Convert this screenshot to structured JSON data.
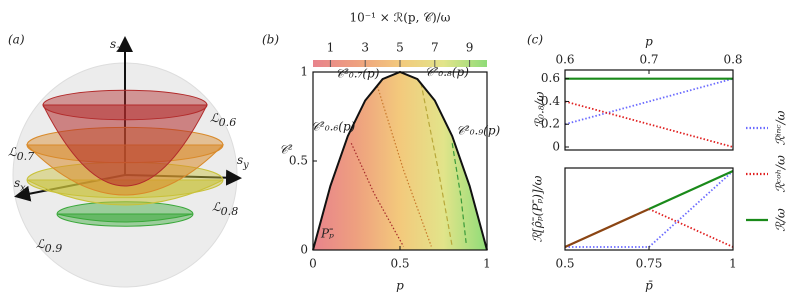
{
  "diagram": {
    "panel_label": "(a)",
    "axes": [
      {
        "symbol": "s",
        "sub": "z"
      },
      {
        "symbol": "s",
        "sub": "x"
      },
      {
        "symbol": "s",
        "sub": "y"
      }
    ],
    "surfaces": [
      {
        "symbol": "ℒ",
        "sub": "0.6",
        "color": "#b22b2b"
      },
      {
        "symbol": "ℒ",
        "sub": "0.7",
        "color": "#d98a2a"
      },
      {
        "symbol": "ℒ",
        "sub": "0.8",
        "color": "#c9c23a"
      },
      {
        "symbol": "ℒ",
        "sub": "0.9",
        "color": "#3aa83a"
      }
    ]
  },
  "chart_data": [
    {
      "type": "contour",
      "panel_label": "(b)",
      "x_label": "p",
      "y_label": "𝒞²",
      "xlim": [
        0,
        1
      ],
      "xticks": [
        0,
        0.5,
        1
      ],
      "ylim": [
        0,
        1
      ],
      "yticks": [
        0,
        0.5,
        1
      ],
      "colorbar": {
        "title": "10⁻¹ × ℛ(p, 𝒞)/ω",
        "lim": [
          0,
          10
        ],
        "ticks": [
          1,
          3,
          5,
          7,
          9
        ],
        "colors": [
          "#e8838c",
          "#eea07f",
          "#f3c97c",
          "#e2e48a",
          "#8fdc78"
        ]
      },
      "boundary": {
        "x": [
          0,
          0.1,
          0.2,
          0.3,
          0.4,
          0.5,
          0.6,
          0.7,
          0.8,
          0.9,
          1
        ],
        "values": [
          0,
          0.36,
          0.64,
          0.84,
          0.96,
          1,
          0.96,
          0.84,
          0.64,
          0.36,
          0
        ]
      },
      "contour_lines": [
        {
          "name": "𝒞²₀.₆(p)",
          "color": "#a52a2a",
          "x": [
            0.22,
            0.35,
            0.52
          ],
          "values": [
            0.6,
            0.32,
            0.02
          ]
        },
        {
          "name": "𝒞²₀.₇(p)",
          "color": "#c8782a",
          "x": [
            0.37,
            0.52,
            0.68
          ],
          "values": [
            0.92,
            0.45,
            0.02
          ]
        },
        {
          "name": "𝒞²₀.₈(p)",
          "color": "#b8a83a",
          "x": [
            0.62,
            0.72,
            0.8
          ],
          "values": [
            0.94,
            0.45,
            0.02
          ]
        },
        {
          "name": "𝒞²₀.₉(p)",
          "color": "#3a9a3a",
          "x": [
            0.8,
            0.85,
            0.88
          ],
          "values": [
            0.6,
            0.3,
            0.04
          ]
        }
      ],
      "annotation": "Pₚ̄"
    },
    {
      "type": "line",
      "panel_label": "(c)",
      "x_label": "p",
      "y_label": "ℛ₀.₈/ω",
      "x": [
        0.6,
        0.8
      ],
      "xlim": [
        0.6,
        0.8
      ],
      "xticks": [
        0.6,
        0.7,
        0.8
      ],
      "ylim": [
        0,
        0.65
      ],
      "yticks": [
        0,
        0.2,
        0.4,
        0.6
      ],
      "series": [
        {
          "name": "ℛⁱⁿᶜ/ω",
          "color": "#6b6bff",
          "dash": "dotted",
          "values": [
            0.2,
            0.6
          ]
        },
        {
          "name": "ℛᶜᵒʰ/ω",
          "color": "#e02020",
          "dash": "dotted",
          "values": [
            0.4,
            0
          ]
        },
        {
          "name": "ℛ/ω",
          "color": "#1a8a1a",
          "dash": "solid",
          "values": [
            0.6,
            0.6
          ]
        }
      ]
    },
    {
      "type": "line",
      "x_label": "p̄",
      "y_label": "ℛ[ρ̂ₚ̄(Pₚ̄)]/ω",
      "x": [
        0.5,
        0.75,
        1
      ],
      "xlim": [
        0.5,
        1
      ],
      "xticks": [
        0.5,
        0.75,
        1
      ],
      "ylim": [
        0,
        1
      ],
      "series": [
        {
          "color": "#6b6bff",
          "dash": "dotted",
          "values": [
            0,
            0,
            1
          ]
        },
        {
          "color": "#e02020",
          "dash": "dotted",
          "values": [
            null,
            0.5,
            0
          ]
        },
        {
          "color": "#8b4513",
          "dash": "solid",
          "values": [
            0,
            0.5,
            null
          ]
        },
        {
          "color": "#1a8a1a",
          "dash": "solid",
          "values": [
            null,
            0.5,
            1
          ]
        }
      ]
    }
  ]
}
